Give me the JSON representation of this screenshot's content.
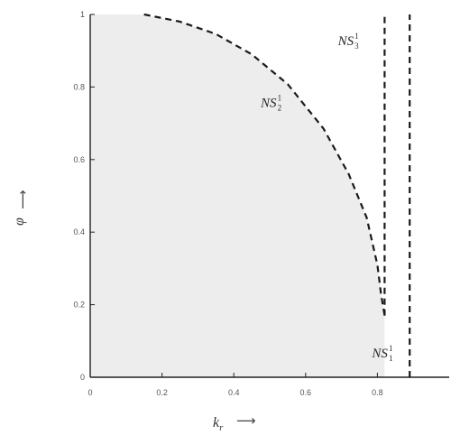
{
  "chart_data": {
    "type": "line",
    "xlabel": "k_r",
    "xlabel_main": "k",
    "xlabel_sub": "r",
    "xlabel_arrow": "⟶",
    "ylabel": "φ",
    "ylabel_arrow": "⟶",
    "xlim": [
      0,
      1
    ],
    "ylim": [
      0,
      1
    ],
    "x_ticks": [
      {
        "value": 0,
        "label": "0"
      },
      {
        "value": 0.2,
        "label": "0.2"
      },
      {
        "value": 0.4,
        "label": "0.4"
      },
      {
        "value": 0.6,
        "label": "0.6"
      },
      {
        "value": 0.8,
        "label": "0.8"
      }
    ],
    "y_ticks": [
      {
        "value": 0,
        "label": "0"
      },
      {
        "value": 0.2,
        "label": "0.2"
      },
      {
        "value": 0.4,
        "label": "0.4"
      },
      {
        "value": 0.6,
        "label": "0.6"
      },
      {
        "value": 0.8,
        "label": "0.8"
      },
      {
        "value": 1,
        "label": "1"
      }
    ],
    "grid": false,
    "shaded_region": "area left of the curves",
    "shade_color": "#ededed",
    "series": [
      {
        "name": "NS_2^1",
        "style": "dashed",
        "x": [
          0.15,
          0.25,
          0.35,
          0.45,
          0.55,
          0.65,
          0.72,
          0.77,
          0.8,
          0.81,
          0.82
        ],
        "y": [
          1.0,
          0.98,
          0.946,
          0.89,
          0.808,
          0.685,
          0.56,
          0.44,
          0.31,
          0.23,
          0.17
        ]
      },
      {
        "name": "NS_3^1",
        "style": "dashed",
        "x": [
          0.82,
          0.82
        ],
        "y": [
          0.17,
          1.0
        ]
      },
      {
        "name": "NS_1^1",
        "style": "dashed",
        "x": [
          0.89,
          0.89
        ],
        "y": [
          0.0,
          1.0
        ]
      }
    ],
    "annotations": [
      {
        "main": "NS",
        "sup": "1",
        "sub": "2",
        "x": 0.475,
        "y": 0.745,
        "series": "NS_2^1"
      },
      {
        "main": "NS",
        "sup": "1",
        "sub": "3",
        "x": 0.69,
        "y": 0.915,
        "series": "NS_3^1"
      },
      {
        "main": "NS",
        "sup": "1",
        "sub": "1",
        "x": 0.785,
        "y": 0.055,
        "series": "NS_1^1"
      }
    ]
  }
}
